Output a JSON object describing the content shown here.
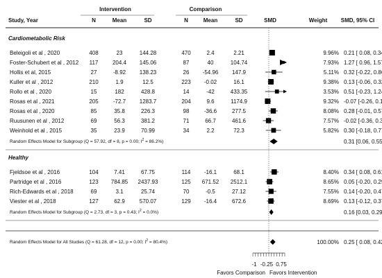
{
  "header": {
    "study": "Study, Year",
    "intervention": "Intervention",
    "comparison": "Comparison",
    "n": "N",
    "mean": "Mean",
    "sd": "SD",
    "smd": "SMD",
    "weight": "Weight",
    "smd_ci": "SMD, 95% CI"
  },
  "axis": {
    "ticks": [
      "-1",
      "-0.25",
      "0.75"
    ],
    "favors_left": "Favors Comparison",
    "favors_right": "Favors Intervention"
  },
  "chart_data": {
    "type": "forest",
    "xlim": [
      -1,
      1
    ],
    "null_line": 0,
    "groups": [
      {
        "name": "Cardiometabolic Risk",
        "studies": [
          {
            "study": "Beleigoli et al , 2020",
            "int_n": "408",
            "int_mean": "23",
            "int_sd": "144.28",
            "cmp_n": "470",
            "cmp_mean": "2.4",
            "cmp_sd": "2.21",
            "weight": "9.96%",
            "ci_text": "0.21 [ 0.08, 0.34]",
            "smd": 0.21,
            "lo": 0.08,
            "hi": 0.34,
            "w": 9.96
          },
          {
            "study": "Foster-Schubert et al , 2012",
            "int_n": "117",
            "int_mean": "204.4",
            "int_sd": "145.06",
            "cmp_n": "87",
            "cmp_mean": "40",
            "cmp_sd": "104.74",
            "weight": "7.93%",
            "ci_text": "1.27 [ 0.96, 1.57]",
            "smd": 1.27,
            "lo": 0.96,
            "hi": 1.57,
            "w": 7.93
          },
          {
            "study": "Hollis et al, 2015",
            "int_n": "27",
            "int_mean": "-8.92",
            "int_sd": "138.23",
            "cmp_n": "26",
            "cmp_mean": "-54.96",
            "cmp_sd": "147.9",
            "weight": "5.11%",
            "ci_text": "0.32 [-0.22, 0.86]",
            "smd": 0.32,
            "lo": -0.22,
            "hi": 0.86,
            "w": 5.11
          },
          {
            "study": "Kuller et al , 2012",
            "int_n": "210",
            "int_mean": "1.9",
            "int_sd": "12.5",
            "cmp_n": "223",
            "cmp_mean": "-0.02",
            "cmp_sd": "16.1",
            "weight": "9.38%",
            "ci_text": "0.13 [-0.06, 0.32]",
            "smd": 0.13,
            "lo": -0.06,
            "hi": 0.32,
            "w": 9.38
          },
          {
            "study": "Rollo et al , 2020",
            "int_n": "15",
            "int_mean": "182",
            "int_sd": "428.8",
            "cmp_n": "14",
            "cmp_mean": "-42",
            "cmp_sd": "433.35",
            "weight": "3.53%",
            "ci_text": "0.51 [-0.23, 1.24]",
            "smd": 0.51,
            "lo": -0.23,
            "hi": 1.24,
            "w": 3.53
          },
          {
            "study": "Rosas et al , 2021",
            "int_n": "205",
            "int_mean": "-72.7",
            "int_sd": "1283.7",
            "cmp_n": "204",
            "cmp_mean": "9.6",
            "cmp_sd": "1174.9",
            "weight": "9.32%",
            "ci_text": "-0.07 [-0.26, 0.13]",
            "smd": -0.07,
            "lo": -0.26,
            "hi": 0.13,
            "w": 9.32
          },
          {
            "study": "Rosas et al , 2020",
            "int_n": "85",
            "int_mean": "35.8",
            "int_sd": "226.3",
            "cmp_n": "98",
            "cmp_mean": "-36.6",
            "cmp_sd": "277.5",
            "weight": "8.08%",
            "ci_text": "0.28 [-0.01, 0.57]",
            "smd": 0.28,
            "lo": -0.01,
            "hi": 0.57,
            "w": 8.08
          },
          {
            "study": "Ruusunen et al , 2012",
            "int_n": "69",
            "int_mean": "56.3",
            "int_sd": "381.2",
            "cmp_n": "71",
            "cmp_mean": "66.7",
            "cmp_sd": "461.6",
            "weight": "7.57%",
            "ci_text": "-0.02 [-0.36, 0.31]",
            "smd": -0.02,
            "lo": -0.36,
            "hi": 0.31,
            "w": 7.57
          },
          {
            "study": "Weinhold et al , 2015",
            "int_n": "35",
            "int_mean": "23.9",
            "int_sd": "70.99",
            "cmp_n": "34",
            "cmp_mean": "2.2",
            "cmp_sd": "72.3",
            "weight": "5.82%",
            "ci_text": "0.30 [-0.18, 0.77]",
            "smd": 0.3,
            "lo": -0.18,
            "hi": 0.77,
            "w": 5.82
          }
        ],
        "summary": {
          "label_prefix": "Random Effects Model for Subgroup (Q = 57.92, df = 8, p = 0.00; I",
          "label_sup": "2",
          "label_suffix": " = 86.2%)",
          "ci_text": "0.31 [0.06, 0.55]",
          "smd": 0.31,
          "lo": 0.06,
          "hi": 0.55
        }
      },
      {
        "name": "Healthy",
        "studies": [
          {
            "study": "Fjeldsoe et al , 2016",
            "int_n": "104",
            "int_mean": "7.41",
            "int_sd": "67.75",
            "cmp_n": "114",
            "cmp_mean": "-16.1",
            "cmp_sd": "68.1",
            "weight": "8.40%",
            "ci_text": "0.34 [ 0.08, 0.61]",
            "smd": 0.34,
            "lo": 0.08,
            "hi": 0.61,
            "w": 8.4
          },
          {
            "study": "Partridge et al , 2016",
            "int_n": "123",
            "int_mean": "784.85",
            "int_sd": "2437.93",
            "cmp_n": "125",
            "cmp_mean": "671.52",
            "cmp_sd": "2512.1",
            "weight": "8.65%",
            "ci_text": "0.05 [-0.20, 0.29]",
            "smd": 0.05,
            "lo": -0.2,
            "hi": 0.29,
            "w": 8.65
          },
          {
            "study": "Rich-Edwards et al , 2018",
            "int_n": "69",
            "int_mean": "3.1",
            "int_sd": "25.74",
            "cmp_n": "70",
            "cmp_mean": "-0.5",
            "cmp_sd": "27.12",
            "weight": "7.55%",
            "ci_text": "0.14 [-0.20, 0.47]",
            "smd": 0.14,
            "lo": -0.2,
            "hi": 0.47,
            "w": 7.55
          },
          {
            "study": "Viester et al , 2018",
            "int_n": "127",
            "int_mean": "62.9",
            "int_sd": "570.07",
            "cmp_n": "129",
            "cmp_mean": "-16.4",
            "cmp_sd": "672.6",
            "weight": "8.69%",
            "ci_text": "0.13 [-0.12, 0.37]",
            "smd": 0.13,
            "lo": -0.12,
            "hi": 0.37,
            "w": 8.69
          }
        ],
        "summary": {
          "label_prefix": "Random Effects Model for Subgroup (Q = 2.73, df = 3, p = 0.43; I",
          "label_sup": "2",
          "label_suffix": " = 0.0%)",
          "ci_text": "0.16 [0.03, 0.29]",
          "smd": 0.16,
          "lo": 0.03,
          "hi": 0.29
        }
      }
    ],
    "overall": {
      "label_prefix": "Random Effects Model for All Studies (Q = 61.28, df = 12, p = 0.00; I",
      "label_sup": "2",
      "label_suffix": " = 80.4%)",
      "weight": "100.00%",
      "ci_text": "0.25 [ 0.08, 0.42]",
      "smd": 0.25,
      "lo": 0.08,
      "hi": 0.42
    }
  }
}
